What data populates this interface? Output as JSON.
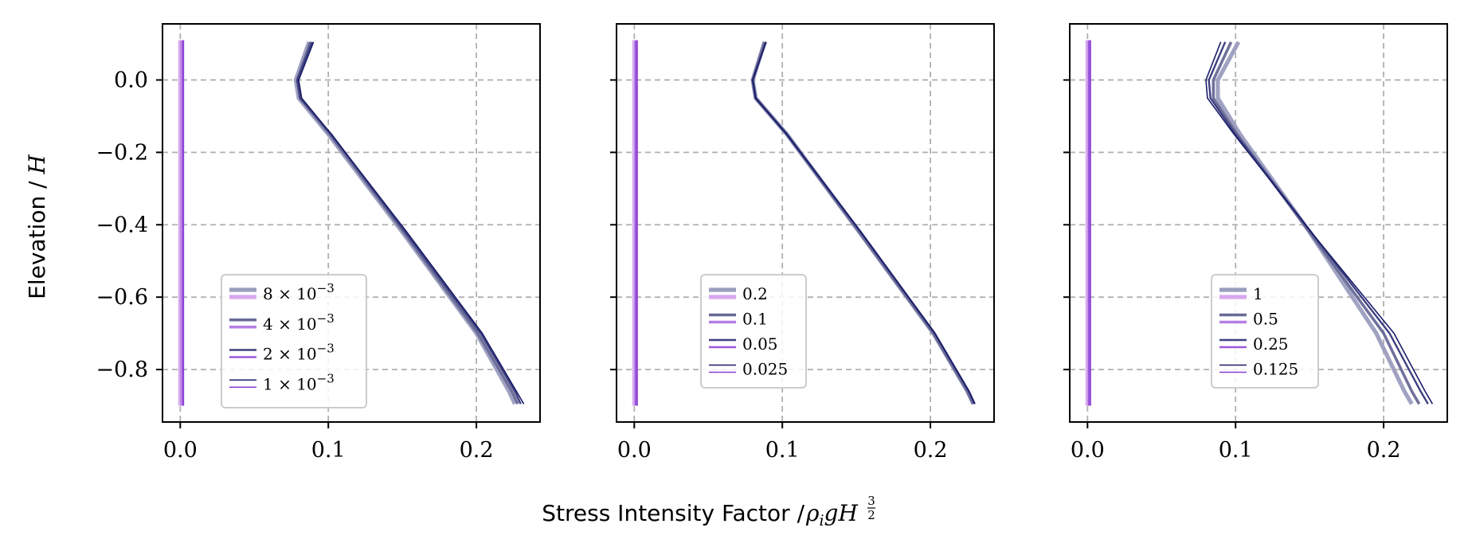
{
  "figure": {
    "xlabel_text": "Stress Intensity Factor / ",
    "xlabel_math": "ρ",
    "xlabel_math_sub": "i",
    "xlabel_math_rest": "gH",
    "xlabel_exp_num": "3",
    "xlabel_exp_den": "2",
    "ylabel_text": "Elevation / ",
    "ylabel_math": "H"
  },
  "colors": {
    "dark_blue_shades": [
      "#9b9dbf",
      "#676996",
      "#3e4080",
      "#1a1c68"
    ],
    "purple_shades": [
      "#d7a8f0",
      "#b57fe3",
      "#9c59d9",
      "#8a3bd6"
    ],
    "grid": "#b0b0b0"
  },
  "chart_data": [
    {
      "type": "line",
      "xlim": [
        -0.012,
        0.243
      ],
      "ylim": [
        -0.945,
        0.155
      ],
      "xticks": [
        0.0,
        0.1,
        0.2
      ],
      "xtick_labels": [
        "0.0",
        "0.1",
        "0.2"
      ],
      "yticks": [
        0.0,
        -0.2,
        -0.4,
        -0.6,
        -0.8
      ],
      "ytick_labels": [
        "0.0",
        "−0.2",
        "−0.4",
        "−0.6",
        "−0.8"
      ],
      "grid": true,
      "legend_position": "lower-left",
      "legend_entries": [
        {
          "label": "8 × 10",
          "exp": "−3"
        },
        {
          "label": "4 × 10",
          "exp": "−3"
        },
        {
          "label": "2 × 10",
          "exp": "−3"
        },
        {
          "label": "1 × 10",
          "exp": "−3"
        }
      ],
      "series_dark": [
        {
          "x": [
            0.087,
            0.078,
            0.08,
            0.1,
            0.15,
            0.2,
            0.222,
            0.226
          ],
          "y": [
            0.105,
            0.0,
            -0.05,
            -0.15,
            -0.42,
            -0.7,
            -0.86,
            -0.895
          ]
        },
        {
          "x": [
            0.088,
            0.079,
            0.081,
            0.101,
            0.151,
            0.201,
            0.224,
            0.228
          ],
          "y": [
            0.105,
            0.0,
            -0.05,
            -0.15,
            -0.42,
            -0.7,
            -0.86,
            -0.895
          ]
        },
        {
          "x": [
            0.089,
            0.079,
            0.081,
            0.102,
            0.152,
            0.203,
            0.226,
            0.23
          ],
          "y": [
            0.105,
            0.0,
            -0.05,
            -0.15,
            -0.42,
            -0.7,
            -0.86,
            -0.895
          ]
        },
        {
          "x": [
            0.09,
            0.08,
            0.082,
            0.102,
            0.153,
            0.204,
            0.227,
            0.232
          ],
          "y": [
            0.105,
            0.0,
            -0.05,
            -0.15,
            -0.42,
            -0.7,
            -0.86,
            -0.895
          ]
        }
      ],
      "series_purple": [
        {
          "x": [
            0.0,
            0.0,
            0.0,
            0.0
          ],
          "y": [
            0.11,
            0.0,
            -0.45,
            -0.9
          ]
        },
        {
          "x": [
            0.001,
            0.001,
            0.001,
            0.001
          ],
          "y": [
            0.11,
            0.0,
            -0.45,
            -0.9
          ]
        },
        {
          "x": [
            0.002,
            0.002,
            0.002,
            0.002
          ],
          "y": [
            0.11,
            0.0,
            -0.45,
            -0.9
          ]
        },
        {
          "x": [
            0.002,
            0.002,
            0.002,
            0.002
          ],
          "y": [
            0.11,
            0.0,
            -0.45,
            -0.9
          ]
        }
      ]
    },
    {
      "type": "line",
      "xlim": [
        -0.012,
        0.243
      ],
      "ylim": [
        -0.945,
        0.155
      ],
      "xticks": [
        0.0,
        0.1,
        0.2
      ],
      "xtick_labels": [
        "0.0",
        "0.1",
        "0.2"
      ],
      "yticks": [
        0.0,
        -0.2,
        -0.4,
        -0.6,
        -0.8
      ],
      "ytick_labels": [],
      "grid": true,
      "legend_position": "lower-center",
      "legend_entries": [
        {
          "label": "0.2",
          "exp": ""
        },
        {
          "label": "0.1",
          "exp": ""
        },
        {
          "label": "0.05",
          "exp": ""
        },
        {
          "label": "0.025",
          "exp": ""
        }
      ],
      "series_dark": [
        {
          "x": [
            0.088,
            0.08,
            0.082,
            0.103,
            0.152,
            0.202,
            0.225,
            0.229
          ],
          "y": [
            0.105,
            0.0,
            -0.05,
            -0.15,
            -0.42,
            -0.7,
            -0.86,
            -0.895
          ]
        },
        {
          "x": [
            0.088,
            0.08,
            0.082,
            0.103,
            0.152,
            0.202,
            0.225,
            0.229
          ],
          "y": [
            0.105,
            0.0,
            -0.05,
            -0.15,
            -0.42,
            -0.7,
            -0.86,
            -0.895
          ]
        },
        {
          "x": [
            0.089,
            0.08,
            0.082,
            0.103,
            0.153,
            0.203,
            0.226,
            0.23
          ],
          "y": [
            0.105,
            0.0,
            -0.05,
            -0.15,
            -0.42,
            -0.7,
            -0.86,
            -0.895
          ]
        },
        {
          "x": [
            0.089,
            0.08,
            0.082,
            0.103,
            0.153,
            0.203,
            0.226,
            0.23
          ],
          "y": [
            0.105,
            0.0,
            -0.05,
            -0.15,
            -0.42,
            -0.7,
            -0.86,
            -0.895
          ]
        }
      ],
      "series_purple": [
        {
          "x": [
            0.0,
            0.0,
            0.0,
            0.0
          ],
          "y": [
            0.11,
            0.0,
            -0.45,
            -0.9
          ]
        },
        {
          "x": [
            0.001,
            0.001,
            0.001,
            0.001
          ],
          "y": [
            0.11,
            0.0,
            -0.45,
            -0.9
          ]
        },
        {
          "x": [
            0.001,
            0.001,
            0.001,
            0.001
          ],
          "y": [
            0.11,
            0.0,
            -0.45,
            -0.9
          ]
        },
        {
          "x": [
            0.002,
            0.002,
            0.002,
            0.002
          ],
          "y": [
            0.11,
            0.0,
            -0.45,
            -0.9
          ]
        }
      ]
    },
    {
      "type": "line",
      "xlim": [
        -0.012,
        0.243
      ],
      "ylim": [
        -0.945,
        0.155
      ],
      "xticks": [
        0.0,
        0.1,
        0.2
      ],
      "xtick_labels": [
        "0.0",
        "0.1",
        "0.2"
      ],
      "yticks": [
        0.0,
        -0.2,
        -0.4,
        -0.6,
        -0.8
      ],
      "ytick_labels": [],
      "grid": true,
      "legend_position": "lower-center",
      "legend_entries": [
        {
          "label": "1",
          "exp": ""
        },
        {
          "label": "0.5",
          "exp": ""
        },
        {
          "label": "0.25",
          "exp": ""
        },
        {
          "label": "0.125",
          "exp": ""
        }
      ],
      "series_dark": [
        {
          "x": [
            0.102,
            0.088,
            0.088,
            0.103,
            0.15,
            0.195,
            0.214,
            0.219
          ],
          "y": [
            0.105,
            0.0,
            -0.05,
            -0.15,
            -0.42,
            -0.7,
            -0.86,
            -0.895
          ]
        },
        {
          "x": [
            0.097,
            0.085,
            0.085,
            0.101,
            0.15,
            0.2,
            0.219,
            0.224
          ],
          "y": [
            0.105,
            0.0,
            -0.05,
            -0.15,
            -0.42,
            -0.7,
            -0.86,
            -0.895
          ]
        },
        {
          "x": [
            0.093,
            0.082,
            0.083,
            0.1,
            0.151,
            0.204,
            0.225,
            0.23
          ],
          "y": [
            0.105,
            0.0,
            -0.05,
            -0.15,
            -0.42,
            -0.7,
            -0.86,
            -0.895
          ]
        },
        {
          "x": [
            0.09,
            0.08,
            0.081,
            0.099,
            0.151,
            0.207,
            0.228,
            0.233
          ],
          "y": [
            0.105,
            0.0,
            -0.05,
            -0.15,
            -0.42,
            -0.7,
            -0.86,
            -0.895
          ]
        }
      ],
      "series_purple": [
        {
          "x": [
            0.0,
            0.0,
            0.0,
            0.0
          ],
          "y": [
            0.11,
            0.0,
            -0.45,
            -0.9
          ]
        },
        {
          "x": [
            0.001,
            0.001,
            0.001,
            0.001
          ],
          "y": [
            0.11,
            0.0,
            -0.45,
            -0.9
          ]
        },
        {
          "x": [
            0.001,
            0.001,
            0.001,
            0.001
          ],
          "y": [
            0.11,
            0.0,
            -0.45,
            -0.9
          ]
        },
        {
          "x": [
            0.002,
            0.002,
            0.002,
            0.002
          ],
          "y": [
            0.11,
            0.0,
            -0.45,
            -0.9
          ]
        }
      ]
    }
  ]
}
